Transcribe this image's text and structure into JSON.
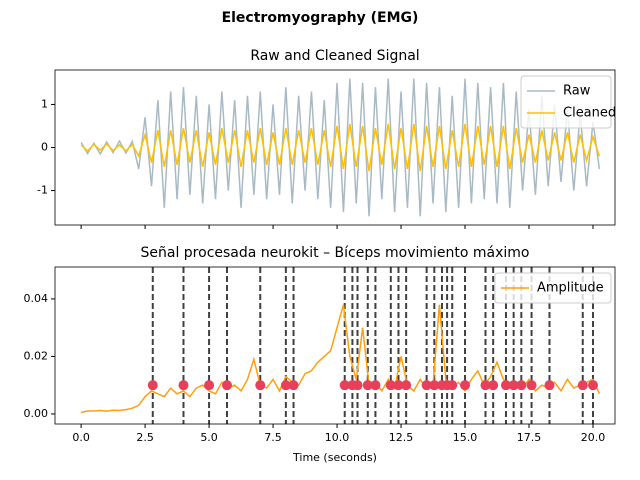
{
  "title": "Electromyography (EMG)",
  "chart_data": [
    {
      "type": "line",
      "title": "Raw and Cleaned Signal",
      "x": [
        0,
        0.25,
        0.5,
        0.75,
        1,
        1.25,
        1.5,
        1.75,
        2,
        2.25,
        2.5,
        2.75,
        3,
        3.25,
        3.5,
        3.75,
        4,
        4.25,
        4.5,
        4.75,
        5,
        5.25,
        5.5,
        5.75,
        6,
        6.25,
        6.5,
        6.75,
        7,
        7.25,
        7.5,
        7.75,
        8,
        8.25,
        8.5,
        8.75,
        9,
        9.25,
        9.5,
        9.75,
        10,
        10.25,
        10.5,
        10.75,
        11,
        11.25,
        11.5,
        11.75,
        12,
        12.25,
        12.5,
        12.75,
        13,
        13.25,
        13.5,
        13.75,
        14,
        14.25,
        14.5,
        14.75,
        15,
        15.25,
        15.5,
        15.75,
        16,
        16.25,
        16.5,
        16.75,
        17,
        17.25,
        17.5,
        17.75,
        18,
        18.25,
        18.5,
        18.75,
        19,
        19.25,
        19.5,
        19.75,
        20,
        20.25
      ],
      "series": [
        {
          "name": "Raw",
          "color": "#a9bac4",
          "values": [
            0.12,
            -0.14,
            0.1,
            -0.15,
            0.13,
            -0.12,
            0.15,
            -0.13,
            0.14,
            -0.5,
            0.7,
            -0.9,
            1.1,
            -1.4,
            1.3,
            -1.2,
            1.4,
            -1.1,
            1.2,
            -1.3,
            1.0,
            -1.2,
            1.3,
            -1.0,
            1.1,
            -1.4,
            1.2,
            -1.1,
            1.3,
            -1.2,
            1.0,
            -1.1,
            1.4,
            -1.3,
            1.2,
            -1.0,
            1.3,
            -1.2,
            1.1,
            -1.4,
            1.5,
            -1.5,
            1.6,
            -1.3,
            1.5,
            -1.6,
            1.4,
            -1.2,
            1.6,
            -1.5,
            1.3,
            -1.4,
            1.6,
            -1.6,
            1.5,
            -1.3,
            1.4,
            -1.5,
            1.2,
            -1.4,
            1.6,
            -1.3,
            1.5,
            -1.2,
            1.4,
            -1.3,
            1.5,
            -1.4,
            1.3,
            -1.0,
            0.9,
            -1.1,
            1.2,
            -0.9,
            1.0,
            -0.8,
            0.9,
            -1.0,
            0.8,
            -0.9,
            0.6,
            -0.5
          ]
        },
        {
          "name": "Cleaned",
          "color": "#ffc000",
          "values": [
            0.06,
            -0.08,
            0.07,
            -0.06,
            0.08,
            -0.07,
            0.06,
            -0.08,
            0.07,
            -0.2,
            0.3,
            -0.35,
            0.4,
            -0.45,
            0.4,
            -0.4,
            0.45,
            -0.35,
            0.4,
            -0.45,
            0.35,
            -0.4,
            0.45,
            -0.35,
            0.4,
            -0.45,
            0.4,
            -0.35,
            0.45,
            -0.4,
            0.35,
            -0.4,
            0.45,
            -0.4,
            0.4,
            -0.35,
            0.45,
            -0.4,
            0.4,
            -0.45,
            0.5,
            -0.5,
            0.55,
            -0.45,
            0.5,
            -0.55,
            0.45,
            -0.4,
            0.55,
            -0.5,
            0.45,
            -0.5,
            0.55,
            -0.55,
            0.5,
            -0.45,
            0.5,
            -0.5,
            0.4,
            -0.45,
            0.55,
            -0.45,
            0.5,
            -0.4,
            0.5,
            -0.45,
            0.5,
            -0.5,
            0.45,
            -0.35,
            0.3,
            -0.35,
            0.4,
            -0.3,
            0.35,
            -0.3,
            0.35,
            -0.35,
            0.3,
            -0.3,
            0.25,
            -0.2
          ]
        }
      ],
      "xlim": [
        -1.02,
        20.86
      ],
      "ylim": [
        -1.8,
        1.8
      ],
      "yticks": [
        -1,
        0,
        1
      ],
      "legend": "upper right"
    },
    {
      "type": "line",
      "title": "Señal procesada neurokit – Bíceps movimiento máximo",
      "xlabel": "Time (seconds)",
      "x": [
        0,
        0.25,
        0.5,
        0.75,
        1,
        1.25,
        1.5,
        1.75,
        2,
        2.25,
        2.5,
        2.75,
        3,
        3.25,
        3.5,
        3.75,
        4,
        4.25,
        4.5,
        4.75,
        5,
        5.25,
        5.5,
        5.75,
        6,
        6.25,
        6.5,
        6.75,
        7,
        7.25,
        7.5,
        7.75,
        8,
        8.25,
        8.5,
        8.75,
        9,
        9.25,
        9.5,
        9.75,
        10,
        10.25,
        10.5,
        10.75,
        11,
        11.25,
        11.5,
        11.75,
        12,
        12.25,
        12.5,
        12.75,
        13,
        13.25,
        13.5,
        13.75,
        14,
        14.25,
        14.5,
        14.75,
        15,
        15.25,
        15.5,
        15.75,
        16,
        16.25,
        16.5,
        16.75,
        17,
        17.25,
        17.5,
        17.75,
        18,
        18.25,
        18.5,
        18.75,
        19,
        19.25,
        19.5,
        19.75,
        20,
        20.25
      ],
      "series": [
        {
          "name": "Amplitude",
          "color": "#ff9f0e",
          "values": [
            0.0005,
            0.001,
            0.001,
            0.0012,
            0.001,
            0.0013,
            0.0012,
            0.0015,
            0.002,
            0.003,
            0.006,
            0.008,
            0.007,
            0.006,
            0.009,
            0.007,
            0.008,
            0.006,
            0.009,
            0.01,
            0.008,
            0.007,
            0.011,
            0.009,
            0.01,
            0.008,
            0.012,
            0.019,
            0.01,
            0.009,
            0.012,
            0.008,
            0.013,
            0.011,
            0.01,
            0.014,
            0.015,
            0.018,
            0.02,
            0.022,
            0.03,
            0.038,
            0.02,
            0.012,
            0.03,
            0.01,
            0.011,
            0.008,
            0.012,
            0.009,
            0.02,
            0.01,
            0.008,
            0.012,
            0.009,
            0.01,
            0.038,
            0.012,
            0.009,
            0.011,
            0.008,
            0.012,
            0.015,
            0.01,
            0.013,
            0.018,
            0.012,
            0.01,
            0.011,
            0.009,
            0.012,
            0.008,
            0.01,
            0.009,
            0.011,
            0.008,
            0.012,
            0.009,
            0.01,
            0.011,
            0.012,
            0.007
          ]
        }
      ],
      "events": {
        "color": "#e8405a",
        "line_color": "#404040",
        "x": [
          2.8,
          4.0,
          5.0,
          5.7,
          7.0,
          8.0,
          8.3,
          10.3,
          10.6,
          10.8,
          11.2,
          11.5,
          12.1,
          12.4,
          12.7,
          13.5,
          13.8,
          14.1,
          14.3,
          14.5,
          15.0,
          15.8,
          16.1,
          16.6,
          16.9,
          17.2,
          17.6,
          18.3,
          19.6,
          20.0
        ],
        "values": [
          0.01,
          0.01,
          0.01,
          0.01,
          0.01,
          0.01,
          0.01,
          0.01,
          0.01,
          0.01,
          0.01,
          0.01,
          0.01,
          0.01,
          0.01,
          0.01,
          0.01,
          0.01,
          0.01,
          0.01,
          0.01,
          0.01,
          0.01,
          0.01,
          0.01,
          0.01,
          0.01,
          0.01,
          0.01,
          0.01
        ]
      },
      "xlim": [
        -1.02,
        20.86
      ],
      "ylim": [
        -0.0035,
        0.0511
      ],
      "xticks": [
        {
          "value": 0,
          "label": "0.0"
        },
        {
          "value": 2.5,
          "label": "2.5"
        },
        {
          "value": 5,
          "label": "5.0"
        },
        {
          "value": 7.5,
          "label": "7.5"
        },
        {
          "value": 10,
          "label": "10.0"
        },
        {
          "value": 12.5,
          "label": "12.5"
        },
        {
          "value": 15,
          "label": "15.0"
        },
        {
          "value": 17.5,
          "label": "17.5"
        },
        {
          "value": 20,
          "label": "20.0"
        }
      ],
      "yticks": [
        {
          "value": 0,
          "label": "0.00"
        },
        {
          "value": 0.02,
          "label": "0.02"
        },
        {
          "value": 0.04,
          "label": "0.04"
        }
      ],
      "legend": "upper right"
    }
  ]
}
